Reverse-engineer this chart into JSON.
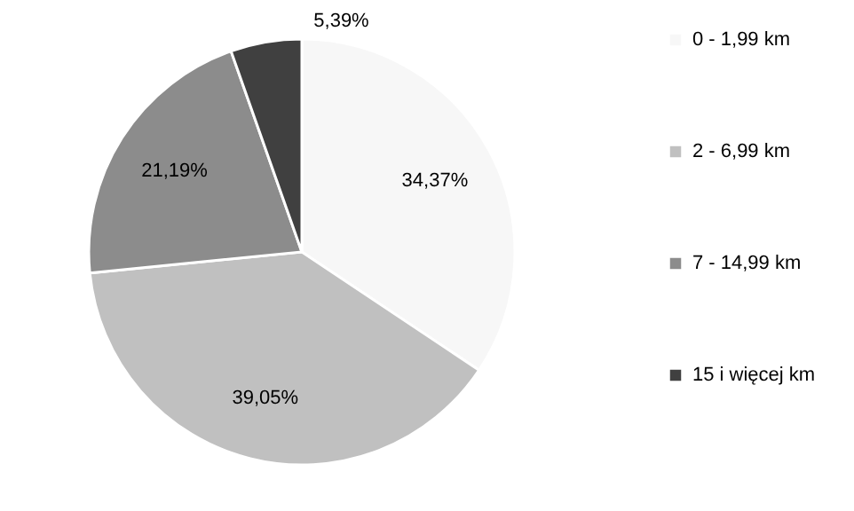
{
  "chart_data": {
    "type": "pie",
    "categories": [
      "0 - 1,99 km",
      "2 - 6,99 km",
      "7 - 14,99 km",
      "15 i więcej km"
    ],
    "values": [
      34.37,
      39.05,
      21.19,
      5.39
    ],
    "value_labels": [
      "34,37%",
      "39,05%",
      "21,19%",
      "5,39%"
    ],
    "colors": [
      "#f7f7f7",
      "#c0c0c0",
      "#8c8c8c",
      "#404040"
    ],
    "legend": "right"
  }
}
